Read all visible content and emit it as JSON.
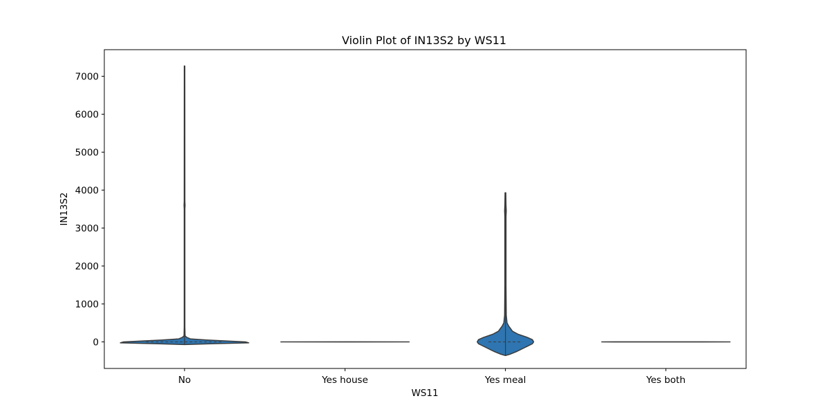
{
  "chart_data": {
    "type": "violin",
    "title": "Violin Plot of IN13S2 by WS11",
    "xlabel": "WS11",
    "ylabel": "IN13S2",
    "categories": [
      "No",
      "Yes house",
      "Yes meal",
      "Yes both"
    ],
    "ylim": [
      -700,
      7700
    ],
    "yticks": [
      0,
      1000,
      2000,
      3000,
      4000,
      5000,
      6000,
      7000
    ],
    "grid": false,
    "fill_color": "#2e75b1",
    "edge_color": "#3b3b3b",
    "violins": [
      {
        "category": "No",
        "max": 7270,
        "min": -70,
        "profile": [
          {
            "y": -70,
            "w": 0.0
          },
          {
            "y": -50,
            "w": 0.4
          },
          {
            "y": -25,
            "w": 1.0
          },
          {
            "y": 0,
            "w": 0.95
          },
          {
            "y": 25,
            "w": 0.65
          },
          {
            "y": 50,
            "w": 0.35
          },
          {
            "y": 80,
            "w": 0.09
          },
          {
            "y": 120,
            "w": 0.035
          },
          {
            "y": 160,
            "w": 0.008
          },
          {
            "y": 400,
            "w": 0.005
          },
          {
            "y": 3500,
            "w": 0.005
          },
          {
            "y": 3600,
            "w": 0.008
          },
          {
            "y": 3700,
            "w": 0.005
          },
          {
            "y": 7270,
            "w": 0.004
          }
        ]
      },
      {
        "category": "Yes house",
        "max": 3,
        "min": -3,
        "profile": [
          {
            "y": -3,
            "w": 0.0
          },
          {
            "y": -1,
            "w": 1.0
          },
          {
            "y": 1,
            "w": 1.0
          },
          {
            "y": 3,
            "w": 0.0
          }
        ]
      },
      {
        "category": "Yes meal",
        "max": 3930,
        "min": -360,
        "profile": [
          {
            "y": -360,
            "w": 0.0
          },
          {
            "y": -320,
            "w": 0.08
          },
          {
            "y": -250,
            "w": 0.18
          },
          {
            "y": -150,
            "w": 0.3
          },
          {
            "y": -50,
            "w": 0.42
          },
          {
            "y": 0,
            "w": 0.44
          },
          {
            "y": 60,
            "w": 0.42
          },
          {
            "y": 120,
            "w": 0.34
          },
          {
            "y": 200,
            "w": 0.2
          },
          {
            "y": 280,
            "w": 0.11
          },
          {
            "y": 350,
            "w": 0.08
          },
          {
            "y": 420,
            "w": 0.05
          },
          {
            "y": 500,
            "w": 0.025
          },
          {
            "y": 700,
            "w": 0.013
          },
          {
            "y": 1500,
            "w": 0.009
          },
          {
            "y": 3300,
            "w": 0.009
          },
          {
            "y": 3450,
            "w": 0.013
          },
          {
            "y": 3600,
            "w": 0.009
          },
          {
            "y": 3930,
            "w": 0.006
          }
        ]
      },
      {
        "category": "Yes both",
        "max": 3,
        "min": -3,
        "profile": [
          {
            "y": -3,
            "w": 0.0
          },
          {
            "y": -1,
            "w": 1.0
          },
          {
            "y": 1,
            "w": 1.0
          },
          {
            "y": 3,
            "w": 0.0
          }
        ]
      }
    ]
  }
}
